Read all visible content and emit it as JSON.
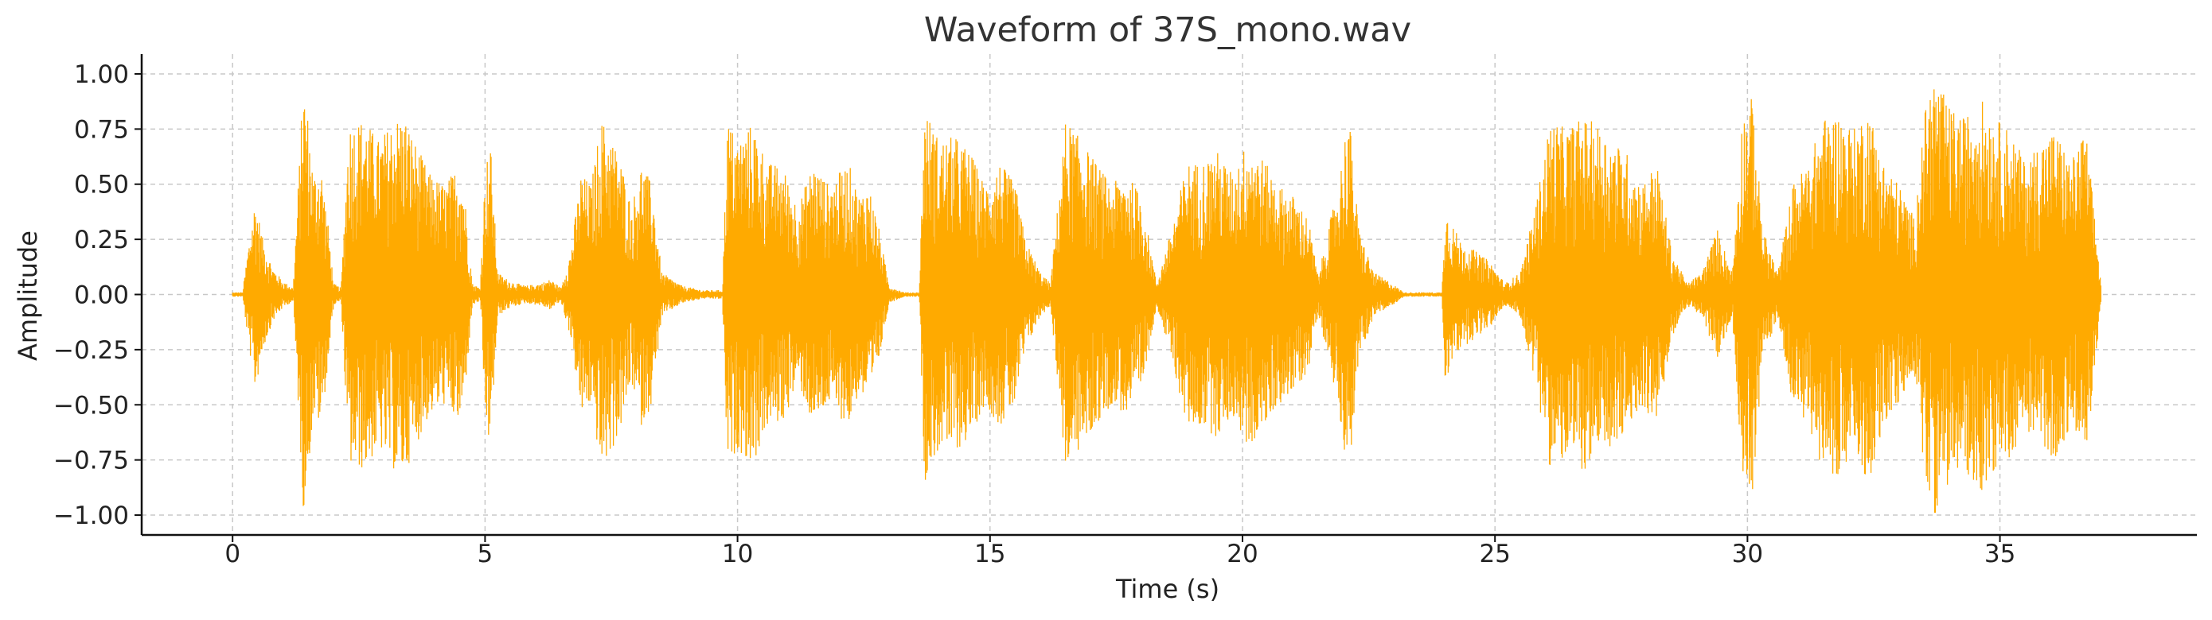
{
  "chart_data": {
    "type": "line",
    "title": "Waveform of 37S_mono.wav",
    "xlabel": "Time (s)",
    "ylabel": "Amplitude",
    "xlim": [
      -1.8,
      38.9
    ],
    "ylim": [
      -1.09,
      1.09
    ],
    "x_ticks": [
      0,
      5,
      10,
      15,
      20,
      25,
      30,
      35
    ],
    "x_tick_labels": [
      "0",
      "5",
      "10",
      "15",
      "20",
      "25",
      "30",
      "35"
    ],
    "y_ticks": [
      1.0,
      0.75,
      0.5,
      0.25,
      0.0,
      -0.25,
      -0.5,
      -0.75,
      -1.0
    ],
    "y_tick_labels": [
      "1.00",
      "0.75",
      "0.50",
      "0.25",
      "0.00",
      "−0.25",
      "−0.50",
      "−0.75",
      "−1.00"
    ],
    "grid": true,
    "legend": "none",
    "series": [
      {
        "color": "#FFAA00",
        "duration_s": 37.0,
        "envelope": [
          [
            0.0,
            0.01
          ],
          [
            0.2,
            0.01
          ],
          [
            0.3,
            0.2
          ],
          [
            0.45,
            0.44
          ],
          [
            0.6,
            0.25
          ],
          [
            0.8,
            0.12
          ],
          [
            1.0,
            0.06
          ],
          [
            1.2,
            0.03
          ],
          [
            1.3,
            0.5
          ],
          [
            1.4,
            0.98
          ],
          [
            1.5,
            0.8
          ],
          [
            1.6,
            0.55
          ],
          [
            1.75,
            0.6
          ],
          [
            1.9,
            0.3
          ],
          [
            2.0,
            0.05
          ],
          [
            2.15,
            0.03
          ],
          [
            2.3,
            0.78
          ],
          [
            2.6,
            0.8
          ],
          [
            2.9,
            0.7
          ],
          [
            3.2,
            0.8
          ],
          [
            3.4,
            0.82
          ],
          [
            3.6,
            0.7
          ],
          [
            3.9,
            0.55
          ],
          [
            4.2,
            0.5
          ],
          [
            4.5,
            0.6
          ],
          [
            4.6,
            0.45
          ],
          [
            4.75,
            0.05
          ],
          [
            4.9,
            0.03
          ],
          [
            5.0,
            0.55
          ],
          [
            5.1,
            0.72
          ],
          [
            5.25,
            0.1
          ],
          [
            5.5,
            0.06
          ],
          [
            5.8,
            0.04
          ],
          [
            6.1,
            0.05
          ],
          [
            6.3,
            0.07
          ],
          [
            6.5,
            0.03
          ],
          [
            6.7,
            0.2
          ],
          [
            6.9,
            0.55
          ],
          [
            7.1,
            0.5
          ],
          [
            7.3,
            0.8
          ],
          [
            7.5,
            0.72
          ],
          [
            7.7,
            0.6
          ],
          [
            7.9,
            0.4
          ],
          [
            8.1,
            0.6
          ],
          [
            8.3,
            0.5
          ],
          [
            8.5,
            0.1
          ],
          [
            8.9,
            0.04
          ],
          [
            9.3,
            0.02
          ],
          [
            9.7,
            0.02
          ],
          [
            9.8,
            0.8
          ],
          [
            10.0,
            0.7
          ],
          [
            10.3,
            0.78
          ],
          [
            10.6,
            0.6
          ],
          [
            10.9,
            0.58
          ],
          [
            11.2,
            0.4
          ],
          [
            11.5,
            0.6
          ],
          [
            11.8,
            0.5
          ],
          [
            12.2,
            0.6
          ],
          [
            12.4,
            0.45
          ],
          [
            12.6,
            0.5
          ],
          [
            12.8,
            0.3
          ],
          [
            13.0,
            0.04
          ],
          [
            13.3,
            0.01
          ],
          [
            13.6,
            0.01
          ],
          [
            13.7,
            0.85
          ],
          [
            14.0,
            0.7
          ],
          [
            14.3,
            0.72
          ],
          [
            14.6,
            0.65
          ],
          [
            14.9,
            0.5
          ],
          [
            15.2,
            0.6
          ],
          [
            15.5,
            0.5
          ],
          [
            15.7,
            0.25
          ],
          [
            16.0,
            0.1
          ],
          [
            16.2,
            0.05
          ],
          [
            16.5,
            0.8
          ],
          [
            16.8,
            0.7
          ],
          [
            17.1,
            0.6
          ],
          [
            17.4,
            0.5
          ],
          [
            17.7,
            0.55
          ],
          [
            18.0,
            0.45
          ],
          [
            18.3,
            0.05
          ],
          [
            18.6,
            0.3
          ],
          [
            18.9,
            0.6
          ],
          [
            19.2,
            0.6
          ],
          [
            19.5,
            0.65
          ],
          [
            19.8,
            0.55
          ],
          [
            20.1,
            0.7
          ],
          [
            20.4,
            0.62
          ],
          [
            20.7,
            0.5
          ],
          [
            21.0,
            0.45
          ],
          [
            21.3,
            0.35
          ],
          [
            21.5,
            0.08
          ],
          [
            21.7,
            0.3
          ],
          [
            21.9,
            0.5
          ],
          [
            22.1,
            0.85
          ],
          [
            22.3,
            0.3
          ],
          [
            22.6,
            0.1
          ],
          [
            22.9,
            0.06
          ],
          [
            23.2,
            0.01
          ],
          [
            23.6,
            0.01
          ],
          [
            23.95,
            0.01
          ],
          [
            24.0,
            0.4
          ],
          [
            24.3,
            0.25
          ],
          [
            24.6,
            0.2
          ],
          [
            24.9,
            0.15
          ],
          [
            25.2,
            0.05
          ],
          [
            25.5,
            0.1
          ],
          [
            25.8,
            0.4
          ],
          [
            26.1,
            0.8
          ],
          [
            26.4,
            0.75
          ],
          [
            26.7,
            0.8
          ],
          [
            27.0,
            0.78
          ],
          [
            27.3,
            0.7
          ],
          [
            27.6,
            0.65
          ],
          [
            27.9,
            0.5
          ],
          [
            28.2,
            0.6
          ],
          [
            28.5,
            0.2
          ],
          [
            28.8,
            0.05
          ],
          [
            29.1,
            0.1
          ],
          [
            29.4,
            0.3
          ],
          [
            29.7,
            0.1
          ],
          [
            29.9,
            0.82
          ],
          [
            30.1,
            0.9
          ],
          [
            30.3,
            0.3
          ],
          [
            30.6,
            0.1
          ],
          [
            30.9,
            0.5
          ],
          [
            31.2,
            0.6
          ],
          [
            31.5,
            0.8
          ],
          [
            31.8,
            0.82
          ],
          [
            32.1,
            0.75
          ],
          [
            32.4,
            0.85
          ],
          [
            32.7,
            0.6
          ],
          [
            33.0,
            0.5
          ],
          [
            33.3,
            0.35
          ],
          [
            33.55,
            0.9
          ],
          [
            33.7,
            1.0
          ],
          [
            34.0,
            0.85
          ],
          [
            34.3,
            0.8
          ],
          [
            34.6,
            0.9
          ],
          [
            34.9,
            0.8
          ],
          [
            35.2,
            0.75
          ],
          [
            35.5,
            0.6
          ],
          [
            35.8,
            0.7
          ],
          [
            36.1,
            0.75
          ],
          [
            36.4,
            0.6
          ],
          [
            36.7,
            0.75
          ],
          [
            36.9,
            0.3
          ],
          [
            37.0,
            0.05
          ]
        ]
      }
    ]
  }
}
